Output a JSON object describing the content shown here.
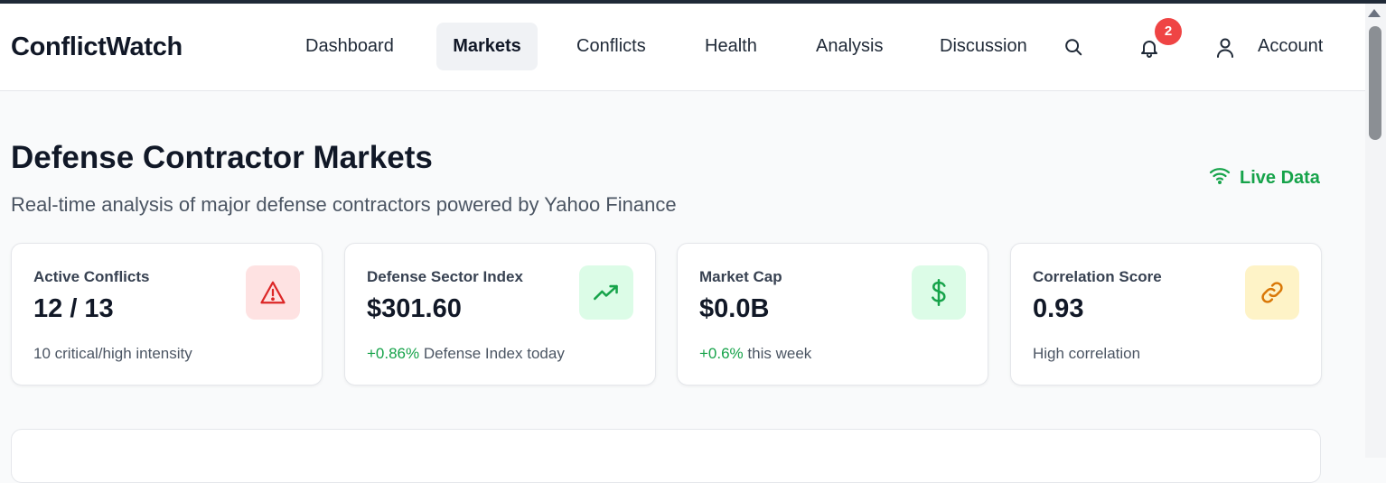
{
  "app": {
    "logo": "ConflictWatch"
  },
  "nav": {
    "items": [
      {
        "label": "Dashboard",
        "active": false
      },
      {
        "label": "Markets",
        "active": true
      },
      {
        "label": "Conflicts",
        "active": false
      },
      {
        "label": "Health",
        "active": false
      },
      {
        "label": "Analysis",
        "active": false
      },
      {
        "label": "Discussion",
        "active": false
      }
    ],
    "notification_count": "2",
    "account_label": "Account",
    "icons": [
      "search-icon",
      "bell-icon",
      "user-icon"
    ]
  },
  "page": {
    "title": "Defense Contractor Markets",
    "subtitle": "Real-time analysis of major defense contractors powered by Yahoo Finance",
    "live_label": "Live Data"
  },
  "cards": [
    {
      "label": "Active Conflicts",
      "value": "12 / 13",
      "delta": "",
      "foot": "10 critical/high intensity",
      "icon": "alert-triangle-icon",
      "icon_bg": "#fee2e2",
      "icon_color": "#dc2626"
    },
    {
      "label": "Defense Sector Index",
      "value": "$301.60",
      "delta": "+0.86%",
      "foot": "Defense Index today",
      "icon": "trending-up-icon",
      "icon_bg": "#dcfce7",
      "icon_color": "#16a34a"
    },
    {
      "label": "Market Cap",
      "value": "$0.0B",
      "delta": "+0.6%",
      "foot": "this week",
      "icon": "dollar-icon",
      "icon_bg": "#dcfce7",
      "icon_color": "#16a34a"
    },
    {
      "label": "Correlation Score",
      "value": "0.93",
      "delta": "",
      "foot": "High correlation",
      "icon": "link-icon",
      "icon_bg": "#fef3c7",
      "icon_color": "#d97706"
    }
  ],
  "colors": {
    "accent_green": "#16a34a",
    "badge_red": "#ef4444"
  }
}
